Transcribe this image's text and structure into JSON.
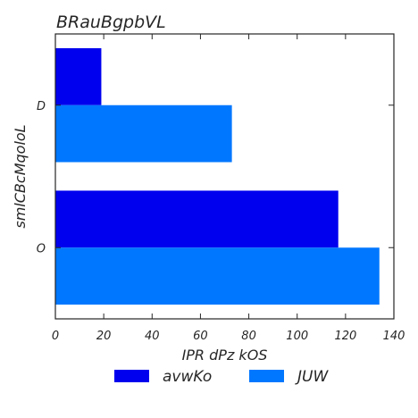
{
  "chart_data": {
    "type": "bar",
    "orientation": "horizontal",
    "title": "BRauBgpbVL",
    "xlabel": "IPR dPz kOS",
    "ylabel": "smlCBcMqoloL",
    "categories": [
      "D",
      "O"
    ],
    "series": [
      {
        "name": "avwKo",
        "values": [
          19,
          117
        ],
        "color": "#0000ee"
      },
      {
        "name": "JUW",
        "values": [
          73,
          134
        ],
        "color": "#0077ff"
      }
    ],
    "xlim": [
      0,
      140
    ],
    "xticks": [
      0,
      20,
      40,
      60,
      80,
      100,
      120,
      140
    ],
    "grid": false,
    "legend_position": "bottom-center"
  }
}
